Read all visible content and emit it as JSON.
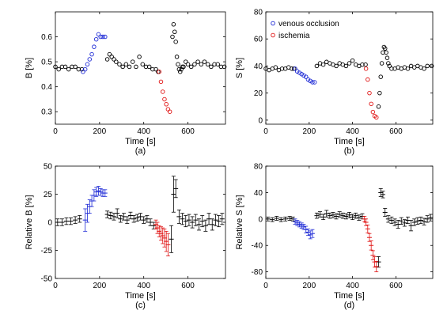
{
  "colors": {
    "normal": "#000000",
    "venous": "#1f2bd6",
    "ischemia": "#e01515"
  },
  "chart_data": [
    {
      "id": "a",
      "type": "scatter",
      "panel_label": "(a)",
      "xlabel": "Time [s]",
      "ylabel": "B [%]",
      "xlim": [
        0,
        770
      ],
      "ylim": [
        0.25,
        0.7
      ],
      "xticks": [
        0,
        200,
        400,
        600
      ],
      "xtick_labels": [
        "0",
        "200",
        "400",
        "600"
      ],
      "yticks": [
        0.3,
        0.4,
        0.5,
        0.6
      ],
      "ytick_labels": [
        "0.3",
        "0.4",
        "0.5",
        "0.6"
      ],
      "series": [
        {
          "key": "normal",
          "x": [
            0,
            15,
            30,
            45,
            60,
            75,
            90,
            105,
            120,
            235,
            245,
            255,
            265,
            275,
            290,
            305,
            320,
            335,
            350,
            365,
            380,
            395,
            410,
            425,
            440,
            455,
            465,
            530,
            535,
            540,
            545,
            550,
            555,
            560,
            565,
            570,
            575,
            580,
            590,
            600,
            615,
            630,
            645,
            660,
            675,
            690,
            705,
            720,
            735,
            750,
            765
          ],
          "y": [
            0.48,
            0.47,
            0.48,
            0.48,
            0.47,
            0.48,
            0.48,
            0.47,
            0.47,
            0.51,
            0.53,
            0.52,
            0.51,
            0.5,
            0.49,
            0.48,
            0.49,
            0.48,
            0.5,
            0.48,
            0.52,
            0.49,
            0.48,
            0.48,
            0.47,
            0.47,
            0.46,
            0.6,
            0.65,
            0.62,
            0.58,
            0.52,
            0.49,
            0.47,
            0.46,
            0.47,
            0.48,
            0.48,
            0.5,
            0.49,
            0.48,
            0.49,
            0.5,
            0.49,
            0.5,
            0.49,
            0.48,
            0.49,
            0.49,
            0.48,
            0.48
          ]
        },
        {
          "key": "venous",
          "x": [
            125,
            135,
            145,
            155,
            165,
            175,
            185,
            195,
            205,
            215,
            225
          ],
          "y": [
            0.46,
            0.47,
            0.49,
            0.51,
            0.53,
            0.56,
            0.59,
            0.61,
            0.6,
            0.6,
            0.6
          ]
        },
        {
          "key": "ischemia",
          "x": [
            470,
            478,
            486,
            494,
            502,
            510,
            518
          ],
          "y": [
            0.46,
            0.42,
            0.38,
            0.35,
            0.33,
            0.31,
            0.3
          ]
        }
      ]
    },
    {
      "id": "b",
      "type": "scatter",
      "panel_label": "(b)",
      "xlabel": "Time [s]",
      "ylabel": "S [%]",
      "xlim": [
        0,
        770
      ],
      "ylim": [
        -3,
        80
      ],
      "xticks": [
        0,
        200,
        400,
        600
      ],
      "xtick_labels": [
        "0",
        "200",
        "400",
        "600"
      ],
      "yticks": [
        0,
        20,
        40,
        60,
        80
      ],
      "ytick_labels": [
        "0",
        "20",
        "40",
        "60",
        "80"
      ],
      "legend": [
        {
          "key": "venous",
          "label": "venous occlusion"
        },
        {
          "key": "ischemia",
          "label": "ischemia"
        }
      ],
      "series": [
        {
          "key": "normal",
          "x": [
            0,
            15,
            30,
            45,
            60,
            75,
            90,
            105,
            120,
            130,
            235,
            250,
            265,
            280,
            295,
            310,
            325,
            340,
            355,
            370,
            385,
            400,
            415,
            430,
            445,
            460,
            520,
            525,
            530,
            535,
            540,
            545,
            550,
            555,
            560,
            565,
            570,
            580,
            595,
            610,
            625,
            640,
            655,
            670,
            685,
            700,
            715,
            730,
            745,
            765
          ],
          "y": [
            38,
            37,
            38,
            39,
            37,
            38,
            38,
            39,
            38,
            38,
            40,
            42,
            41,
            43,
            42,
            41,
            40,
            42,
            41,
            40,
            42,
            44,
            41,
            40,
            41,
            41,
            10,
            20,
            32,
            42,
            50,
            54,
            53,
            50,
            46,
            42,
            40,
            38,
            38,
            39,
            38,
            39,
            38,
            40,
            39,
            40,
            39,
            38,
            40,
            40
          ]
        },
        {
          "key": "venous",
          "x": [
            135,
            145,
            155,
            165,
            175,
            185,
            195,
            205,
            215,
            225
          ],
          "y": [
            38,
            36,
            35,
            34,
            33,
            32,
            30,
            29,
            28,
            28
          ]
        },
        {
          "key": "ischemia",
          "x": [
            462,
            470,
            478,
            486,
            494,
            502,
            510
          ],
          "y": [
            38,
            30,
            20,
            12,
            6,
            3,
            2
          ]
        }
      ]
    },
    {
      "id": "c",
      "type": "scatter",
      "panel_label": "(c)",
      "xlabel": "Time [s]",
      "ylabel": "Relative B [%]",
      "xlim": [
        0,
        770
      ],
      "ylim": [
        -50,
        50
      ],
      "xticks": [
        0,
        200,
        400,
        600
      ],
      "xtick_labels": [
        "0",
        "200",
        "400",
        "600"
      ],
      "yticks": [
        -50,
        -25,
        0,
        25,
        50
      ],
      "ytick_labels": [
        "-50",
        "-25",
        "0",
        "25",
        "50"
      ],
      "series": [
        {
          "key": "normal",
          "x": [
            10,
            30,
            50,
            70,
            90,
            110,
            235,
            250,
            265,
            280,
            295,
            310,
            325,
            340,
            355,
            370,
            385,
            400,
            415,
            430,
            445,
            525,
            535,
            545,
            560,
            575,
            590,
            605,
            620,
            635,
            650,
            665,
            680,
            695,
            710,
            725,
            740,
            755
          ],
          "y": [
            0,
            0,
            1,
            1,
            2,
            3,
            7,
            6,
            5,
            8,
            3,
            5,
            2,
            6,
            3,
            4,
            5,
            2,
            3,
            0,
            -3,
            -15,
            25,
            30,
            5,
            3,
            1,
            2,
            0,
            2,
            -2,
            1,
            -3,
            3,
            -2,
            2,
            1,
            3
          ],
          "err": [
            3,
            3,
            3,
            3,
            3,
            3,
            3,
            3,
            3,
            4,
            3,
            3,
            3,
            3,
            3,
            3,
            3,
            3,
            3,
            3,
            3,
            12,
            16,
            8,
            6,
            5,
            5,
            5,
            5,
            5,
            5,
            5,
            5,
            5,
            5,
            5,
            5,
            5
          ]
        },
        {
          "key": "venous",
          "x": [
            135,
            145,
            155,
            165,
            175,
            185,
            195,
            205,
            215,
            225
          ],
          "y": [
            2,
            8,
            14,
            19,
            24,
            27,
            28,
            27,
            26,
            26
          ],
          "err": [
            10,
            8,
            6,
            5,
            5,
            4,
            4,
            3,
            3,
            3
          ]
        },
        {
          "key": "ischemia",
          "x": [
            455,
            462,
            470,
            478,
            486,
            494,
            502,
            510
          ],
          "y": [
            -2,
            -5,
            -8,
            -10,
            -12,
            -14,
            -17,
            -20
          ],
          "err": [
            4,
            5,
            5,
            6,
            7,
            8,
            9,
            10
          ]
        }
      ]
    },
    {
      "id": "d",
      "type": "scatter",
      "panel_label": "(d)",
      "xlabel": "Time [s]",
      "ylabel": "Relative S [%]",
      "xlim": [
        0,
        770
      ],
      "ylim": [
        -90,
        80
      ],
      "xticks": [
        0,
        200,
        400,
        600
      ],
      "xtick_labels": [
        "0",
        "200",
        "400",
        "600"
      ],
      "yticks": [
        -80,
        -40,
        0,
        40,
        80
      ],
      "ytick_labels": [
        "-80",
        "-40",
        "0",
        "40",
        "80"
      ],
      "series": [
        {
          "key": "normal",
          "x": [
            10,
            30,
            50,
            70,
            90,
            110,
            125,
            235,
            250,
            265,
            280,
            295,
            310,
            325,
            340,
            355,
            370,
            385,
            400,
            415,
            430,
            445,
            520,
            530,
            540,
            550,
            565,
            580,
            595,
            610,
            625,
            640,
            655,
            670,
            685,
            700,
            715,
            730,
            745,
            760
          ],
          "y": [
            0,
            -1,
            1,
            -1,
            0,
            1,
            0,
            5,
            7,
            3,
            8,
            5,
            6,
            4,
            7,
            5,
            4,
            6,
            3,
            5,
            2,
            4,
            -65,
            40,
            37,
            10,
            0,
            -2,
            -5,
            -8,
            -3,
            -6,
            -2,
            -10,
            -5,
            -3,
            -2,
            -4,
            0,
            2
          ],
          "err": [
            3,
            3,
            3,
            3,
            3,
            3,
            3,
            4,
            4,
            4,
            5,
            4,
            4,
            4,
            4,
            4,
            4,
            4,
            4,
            4,
            4,
            4,
            8,
            6,
            5,
            6,
            5,
            5,
            5,
            6,
            5,
            5,
            5,
            8,
            5,
            5,
            5,
            5,
            5,
            5
          ]
        },
        {
          "key": "venous",
          "x": [
            135,
            145,
            155,
            165,
            175,
            185,
            195,
            205,
            215
          ],
          "y": [
            -4,
            -6,
            -8,
            -10,
            -12,
            -16,
            -20,
            -24,
            -22
          ],
          "err": [
            4,
            4,
            4,
            4,
            4,
            5,
            5,
            6,
            6
          ]
        },
        {
          "key": "ischemia",
          "x": [
            455,
            462,
            470,
            478,
            486,
            494,
            502,
            510
          ],
          "y": [
            0,
            -5,
            -15,
            -28,
            -40,
            -55,
            -65,
            -72
          ],
          "err": [
            4,
            5,
            6,
            6,
            7,
            7,
            8,
            8
          ]
        }
      ]
    }
  ]
}
